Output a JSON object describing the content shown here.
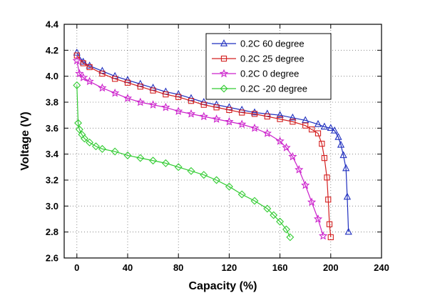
{
  "chart_data": {
    "type": "line",
    "xlabel": "Capacity (%)",
    "ylabel": "Voltage (V)",
    "xlim": [
      -10,
      240
    ],
    "ylim": [
      2.6,
      4.4
    ],
    "xticks": [
      0,
      40,
      80,
      120,
      160,
      200,
      240
    ],
    "yticks": [
      2.6,
      2.8,
      3.0,
      3.2,
      3.4,
      3.6,
      3.8,
      4.0,
      4.2,
      4.4
    ],
    "grid": true,
    "legend_position": "top-right",
    "series": [
      {
        "name": "0.2C  60 degree",
        "color": "#1f2fbf",
        "marker": "triangle",
        "x": [
          0,
          5,
          10,
          20,
          30,
          40,
          50,
          60,
          70,
          80,
          90,
          100,
          110,
          120,
          130,
          140,
          150,
          160,
          170,
          180,
          190,
          195,
          200,
          203,
          206,
          208,
          210,
          212,
          213,
          214
        ],
        "y": [
          4.18,
          4.11,
          4.08,
          4.04,
          4.0,
          3.97,
          3.94,
          3.91,
          3.88,
          3.86,
          3.83,
          3.8,
          3.78,
          3.76,
          3.74,
          3.72,
          3.71,
          3.7,
          3.68,
          3.66,
          3.63,
          3.61,
          3.6,
          3.58,
          3.53,
          3.47,
          3.39,
          3.29,
          3.07,
          2.8
        ]
      },
      {
        "name": "0.2C  25 degree",
        "color": "#d42020",
        "marker": "square",
        "x": [
          0,
          5,
          10,
          20,
          30,
          40,
          50,
          60,
          70,
          80,
          90,
          100,
          110,
          120,
          130,
          140,
          150,
          160,
          170,
          180,
          185,
          190,
          193,
          195,
          197,
          198,
          199,
          200
        ],
        "y": [
          4.16,
          4.1,
          4.07,
          4.02,
          3.98,
          3.95,
          3.92,
          3.89,
          3.86,
          3.84,
          3.81,
          3.78,
          3.76,
          3.74,
          3.72,
          3.71,
          3.69,
          3.67,
          3.65,
          3.62,
          3.59,
          3.56,
          3.48,
          3.37,
          3.22,
          3.05,
          2.86,
          2.76
        ]
      },
      {
        "name": "0.2C  0  degree",
        "color": "#cc22cc",
        "marker": "star",
        "x": [
          0,
          2,
          5,
          10,
          20,
          30,
          40,
          50,
          60,
          70,
          80,
          90,
          100,
          110,
          120,
          130,
          140,
          150,
          160,
          165,
          170,
          175,
          180,
          185,
          190,
          194
        ],
        "y": [
          4.12,
          4.02,
          3.99,
          3.96,
          3.91,
          3.87,
          3.83,
          3.8,
          3.78,
          3.76,
          3.73,
          3.71,
          3.69,
          3.67,
          3.65,
          3.63,
          3.6,
          3.56,
          3.5,
          3.45,
          3.38,
          3.28,
          3.16,
          3.03,
          2.9,
          2.77
        ]
      },
      {
        "name": "0.2C -20 degree",
        "color": "#33cc33",
        "marker": "diamond",
        "x": [
          0,
          1,
          2,
          4,
          6,
          10,
          15,
          20,
          30,
          40,
          50,
          60,
          70,
          80,
          90,
          100,
          110,
          120,
          130,
          140,
          150,
          155,
          160,
          165,
          168
        ],
        "y": [
          3.93,
          3.64,
          3.59,
          3.55,
          3.52,
          3.49,
          3.46,
          3.44,
          3.42,
          3.39,
          3.37,
          3.35,
          3.33,
          3.3,
          3.27,
          3.24,
          3.2,
          3.15,
          3.09,
          3.04,
          2.98,
          2.93,
          2.88,
          2.82,
          2.76
        ]
      }
    ]
  }
}
